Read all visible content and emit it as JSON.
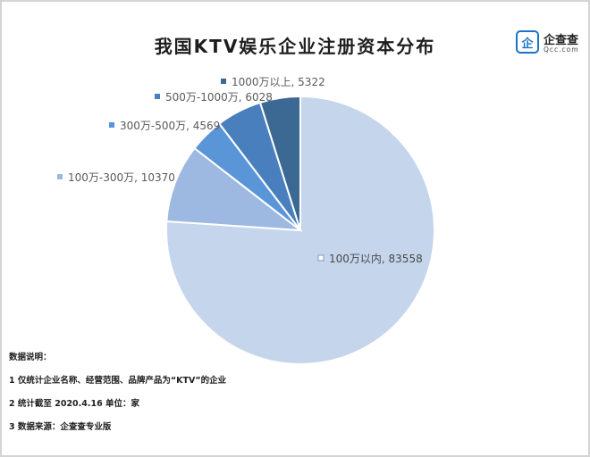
{
  "header": {
    "title": "我国KTV娱乐企业注册资本分布"
  },
  "logo": {
    "name": "企查查",
    "sub": "Qcc.com",
    "brand_color": "#1a73c8"
  },
  "chart_data": {
    "type": "pie",
    "title": "我国KTV娱乐企业注册资本分布",
    "slices": [
      {
        "label": "100万以内",
        "value": 83558,
        "color": "#c5d5ec",
        "marker_color": "#ffffff",
        "label_text": "100万以内, 83558"
      },
      {
        "label": "100万-300万",
        "value": 10370,
        "color": "#9db9e2",
        "marker_color": "#9db9e2",
        "label_text": "100万-300万, 10370"
      },
      {
        "label": "300万-500万",
        "value": 4569,
        "color": "#5a95d8",
        "marker_color": "#5a95d8",
        "label_text": "300万-500万, 4569"
      },
      {
        "label": "500万-1000万",
        "value": 6028,
        "color": "#4a7fbe",
        "marker_color": "#4a7fbe",
        "label_text": "500万-1000万, 6028"
      },
      {
        "label": "1000万以上",
        "value": 5322,
        "color": "#3c6894",
        "marker_color": "#3c6894",
        "label_text": "1000万以上, 5322"
      }
    ]
  },
  "notes": {
    "heading": "数据说明：",
    "lines": [
      "1 仅统计企业名称、经营范围、品牌产品为“KTV”的企业",
      "2 统计截至 2020.4.16 单位：家",
      "3 数据来源：企查查专业版"
    ]
  }
}
